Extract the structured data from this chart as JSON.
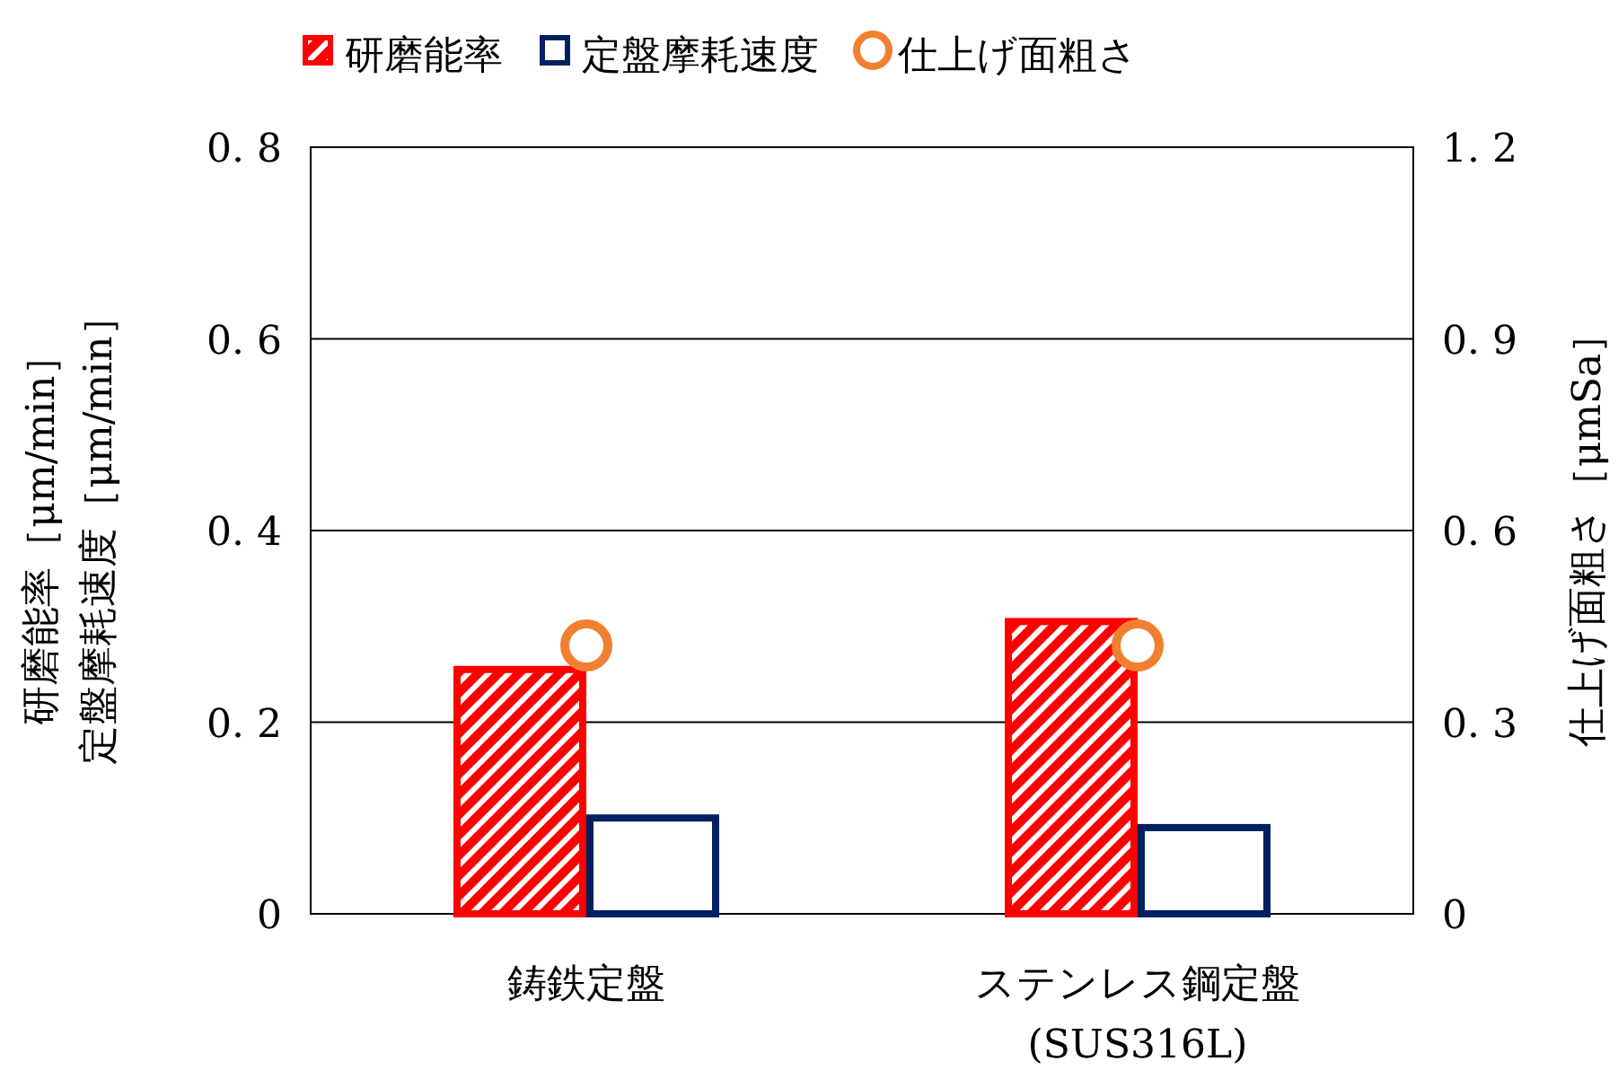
{
  "chart_data": {
    "type": "bar",
    "categories": [
      "鋳鉄定盤",
      "ステンレス鋼定盤\n(SUS316L)"
    ],
    "ylabel": [
      "研磨能率［μm/min］",
      "定盤摩耗速度［μm/min］"
    ],
    "y2label": "仕上げ面粗さ［μmSa］",
    "ylim": [
      0,
      0.8
    ],
    "yticks": [
      0,
      0.2,
      0.4,
      0.6,
      0.8
    ],
    "y2lim": [
      0,
      1.2
    ],
    "y2ticks": [
      0,
      0.3,
      0.6,
      0.9,
      1.2
    ],
    "grid": "y",
    "legend": "top",
    "series": [
      {
        "name": "研磨能率",
        "color": "#ff0000",
        "values": [
          0.255,
          0.305
        ]
      },
      {
        "name": "定盤摩耗速度",
        "color": "#002060",
        "values": [
          0.1,
          0.09
        ]
      },
      {
        "name": "仕上げ面粗さ",
        "type": "scatter",
        "axis": "y2",
        "marker": "circle",
        "color": "#f08030",
        "x": [
          "鋳鉄定盤",
          "ステンレス鋼定盤\n(SUS316L)"
        ],
        "values": [
          0.42,
          0.42
        ]
      }
    ]
  }
}
